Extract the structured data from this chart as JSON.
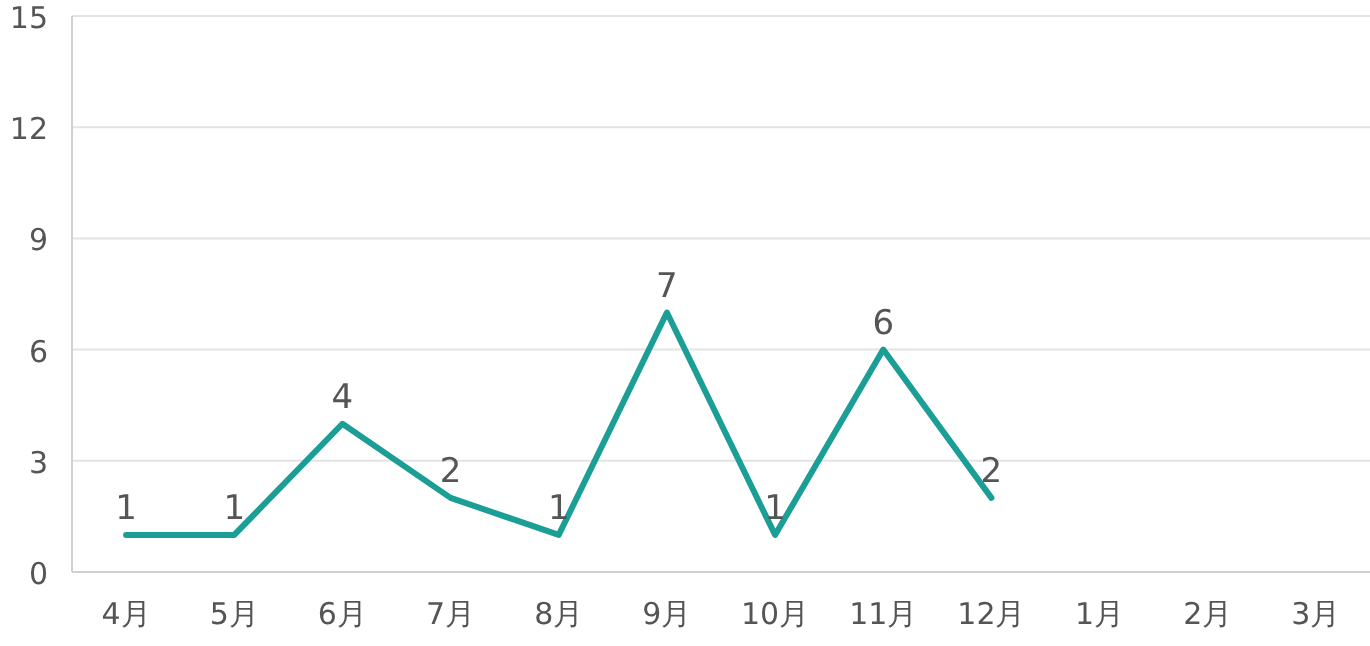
{
  "chart_data": {
    "type": "line",
    "categories": [
      "4月",
      "5月",
      "6月",
      "7月",
      "8月",
      "9月",
      "10月",
      "11月",
      "12月",
      "1月",
      "2月",
      "3月"
    ],
    "series": [
      {
        "color": "#1a9e96",
        "values": [
          1,
          1,
          4,
          2,
          1,
          7,
          1,
          6,
          2,
          null,
          null,
          null
        ]
      }
    ],
    "ylim": [
      0,
      15
    ],
    "yticks": [
      0,
      3,
      6,
      9,
      12,
      15
    ],
    "grid": "y",
    "data_labels": true,
    "marker": "none",
    "line_style": "solid"
  }
}
